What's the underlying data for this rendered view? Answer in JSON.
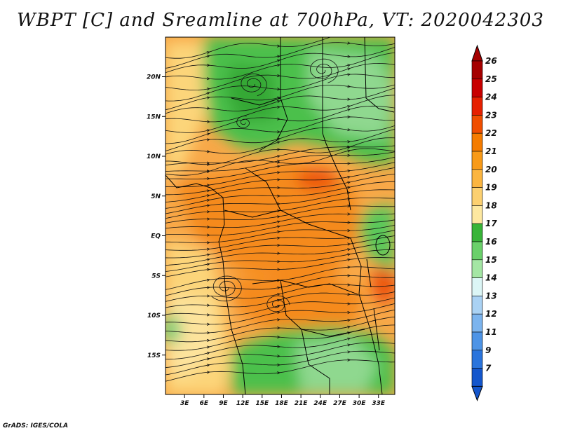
{
  "title": "WBPT [C] and Sreamline at 700hPa, VT: 2020042303",
  "credit": "GrADS: IGES/COLA",
  "map": {
    "lat_labels": [
      "20N",
      "15N",
      "10N",
      "5N",
      "EQ",
      "5S",
      "10S",
      "15S"
    ],
    "lat_values": [
      20,
      15,
      10,
      5,
      0,
      -5,
      -10,
      -15
    ],
    "lon_labels": [
      "3E",
      "6E",
      "9E",
      "12E",
      "15E",
      "18E",
      "21E",
      "24E",
      "27E",
      "30E",
      "33E"
    ],
    "lon_values": [
      3,
      6,
      9,
      12,
      15,
      18,
      21,
      24,
      27,
      30,
      33
    ]
  },
  "colorbar": {
    "labels": [
      "26",
      "25",
      "24",
      "23",
      "22",
      "21",
      "20",
      "19",
      "18",
      "17",
      "16",
      "15",
      "14",
      "13",
      "12",
      "11",
      "9",
      "7"
    ],
    "colors": [
      "#a50000",
      "#c80000",
      "#e62000",
      "#f04e00",
      "#f57c00",
      "#f89a18",
      "#fbb540",
      "#fcd070",
      "#fde8a0",
      "#38b438",
      "#6ad06a",
      "#a4e6a4",
      "#dcf6f6",
      "#aad2f4",
      "#7cb4ee",
      "#4e94e6",
      "#2a74dc",
      "#1456cc"
    ]
  }
}
